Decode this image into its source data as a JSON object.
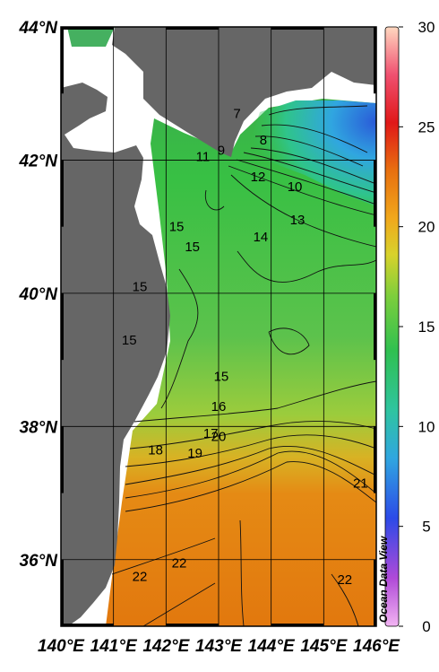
{
  "map": {
    "lat_range": [
      35,
      44
    ],
    "lon_range": [
      140,
      146
    ],
    "lat_ticks": [
      "36°N",
      "38°N",
      "40°N",
      "42°N",
      "44°N"
    ],
    "lon_ticks": [
      "140°E",
      "141°E",
      "142°E",
      "143°E",
      "144°E",
      "145°E",
      "146°E"
    ],
    "colors": {
      "land": "#666666",
      "no_data": "#ffffff",
      "cold": "#2a7bdc",
      "mid": "#33c24a",
      "warm": "#e0780f"
    }
  },
  "colorbar": {
    "min": 0,
    "max": 30,
    "ticks": [
      "0",
      "5",
      "10",
      "15",
      "20",
      "25",
      "30"
    ]
  },
  "contour_labels": [
    {
      "text": "7",
      "lon": 143.35,
      "lat": 42.7
    },
    {
      "text": "8",
      "lon": 143.85,
      "lat": 42.3
    },
    {
      "text": "9",
      "lon": 143.05,
      "lat": 42.15
    },
    {
      "text": "11",
      "lon": 142.7,
      "lat": 42.05
    },
    {
      "text": "12",
      "lon": 143.75,
      "lat": 41.75
    },
    {
      "text": "10",
      "lon": 144.45,
      "lat": 41.6
    },
    {
      "text": "13",
      "lon": 144.5,
      "lat": 41.1
    },
    {
      "text": "14",
      "lon": 143.8,
      "lat": 40.85
    },
    {
      "text": "15",
      "lon": 142.2,
      "lat": 41.0
    },
    {
      "text": "15",
      "lon": 142.5,
      "lat": 40.7
    },
    {
      "text": "15",
      "lon": 141.5,
      "lat": 40.1
    },
    {
      "text": "15",
      "lon": 141.3,
      "lat": 39.3
    },
    {
      "text": "15",
      "lon": 143.05,
      "lat": 38.75
    },
    {
      "text": "16",
      "lon": 143.0,
      "lat": 38.3
    },
    {
      "text": "17",
      "lon": 142.85,
      "lat": 37.9
    },
    {
      "text": "18",
      "lon": 141.8,
      "lat": 37.65
    },
    {
      "text": "19",
      "lon": 142.55,
      "lat": 37.6
    },
    {
      "text": "20",
      "lon": 143.0,
      "lat": 37.85
    },
    {
      "text": "21",
      "lon": 145.7,
      "lat": 37.15
    },
    {
      "text": "22",
      "lon": 141.5,
      "lat": 35.75
    },
    {
      "text": "22",
      "lon": 142.25,
      "lat": 35.95
    },
    {
      "text": "22",
      "lon": 145.4,
      "lat": 35.7
    }
  ],
  "credit": "Ocean Data View"
}
